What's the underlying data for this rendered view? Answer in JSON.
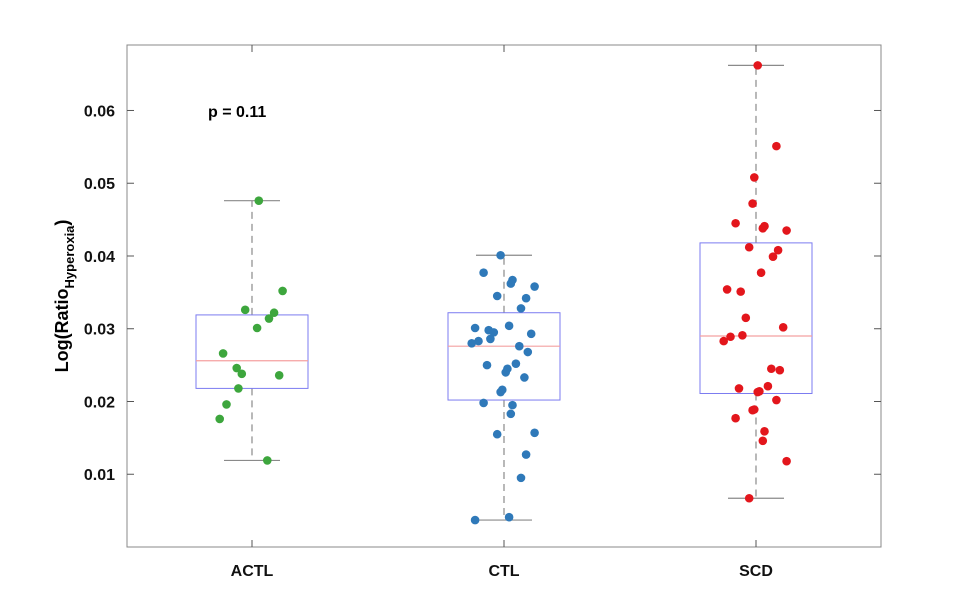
{
  "chart_data": {
    "type": "boxplot",
    "title": "",
    "xlabel": "",
    "ylabel": "Log(Ratio",
    "ylabel_sub": "Hyperoxia",
    "ylabel_close": ")",
    "ylim": [
      0.0,
      0.069
    ],
    "yticks": [
      0.01,
      0.02,
      0.03,
      0.04,
      0.05,
      0.06
    ],
    "ytick_labels": [
      "0.01",
      "0.02",
      "0.03",
      "0.04",
      "0.05",
      "0.06"
    ],
    "annotation": "p = 0.11",
    "categories": [
      "ACTL",
      "CTL",
      "SCD"
    ],
    "box_color": "#7b7bf0",
    "median_color": "#f4a0a0",
    "whisker_color": "#8a8a8a",
    "groups": [
      {
        "name": "ACTL",
        "color": "#3da63d",
        "q1": 0.0218,
        "median": 0.0256,
        "q3": 0.0319,
        "whisker_low": 0.0119,
        "whisker_high": 0.0476,
        "points": [
          0.0476,
          0.0352,
          0.0326,
          0.0322,
          0.0314,
          0.0301,
          0.0266,
          0.0246,
          0.0238,
          0.0236,
          0.0218,
          0.0196,
          0.0176,
          0.0119
        ]
      },
      {
        "name": "CTL",
        "color": "#2f79b9",
        "q1": 0.0202,
        "median": 0.0276,
        "q3": 0.0322,
        "whisker_low": 0.0037,
        "whisker_high": 0.0401,
        "points": [
          0.0401,
          0.0377,
          0.0367,
          0.0362,
          0.0358,
          0.0345,
          0.0342,
          0.0328,
          0.0304,
          0.0301,
          0.0298,
          0.0295,
          0.0293,
          0.0286,
          0.0283,
          0.028,
          0.0276,
          0.0268,
          0.0252,
          0.025,
          0.0245,
          0.024,
          0.0233,
          0.0216,
          0.0213,
          0.0198,
          0.0195,
          0.0183,
          0.0157,
          0.0155,
          0.0127,
          0.0095,
          0.0041,
          0.0037
        ]
      },
      {
        "name": "SCD",
        "color": "#e3161c",
        "q1": 0.0211,
        "median": 0.029,
        "q3": 0.0418,
        "whisker_low": 0.0067,
        "whisker_high": 0.0662,
        "points": [
          0.0662,
          0.0551,
          0.0508,
          0.0472,
          0.0445,
          0.0441,
          0.0438,
          0.0435,
          0.0412,
          0.0408,
          0.0399,
          0.0377,
          0.0354,
          0.0351,
          0.0315,
          0.0302,
          0.0291,
          0.0289,
          0.0283,
          0.0245,
          0.0243,
          0.0221,
          0.0218,
          0.0214,
          0.0213,
          0.0202,
          0.0189,
          0.0188,
          0.0177,
          0.0159,
          0.0146,
          0.0118,
          0.0067
        ]
      }
    ]
  }
}
